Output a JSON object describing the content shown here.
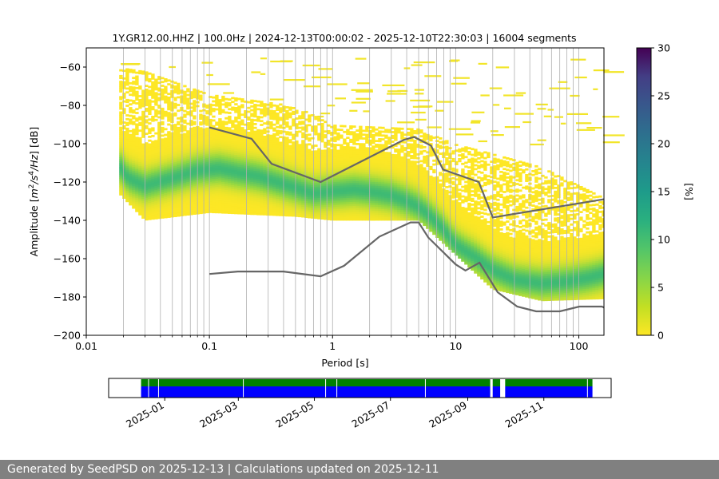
{
  "chart_data": [
    {
      "type": "heatmap",
      "title": "1Y.GR12.00.HHZ | 100.0Hz | 2024-12-13T00:00:02 - 2025-12-10T22:30:03 | 16004 segments",
      "xlabel": "Period [s]",
      "ylabel_parts": [
        "Amplitude [",
        "m",
        "2",
        "/s",
        "4",
        "/Hz",
        "] [dB]"
      ],
      "x_scale": "log",
      "xlim": [
        0.01,
        160
      ],
      "ylim": [
        -200,
        -50
      ],
      "x_ticks": [
        0.01,
        0.1,
        1,
        10,
        100
      ],
      "x_tick_labels": [
        "0.01",
        "0.1",
        "1",
        "10",
        "100"
      ],
      "y_ticks": [
        -200,
        -180,
        -160,
        -140,
        -120,
        -100,
        -80,
        -60
      ],
      "y_tick_labels": [
        "−200",
        "−180",
        "−160",
        "−140",
        "−120",
        "−100",
        "−80",
        "−60"
      ],
      "grid": "vertical minor lines on log period axis",
      "colorbar": {
        "label": "[%]",
        "range": [
          0,
          30
        ],
        "ticks": [
          0,
          5,
          10,
          15,
          20,
          25,
          30
        ],
        "tick_labels": [
          "0",
          "5",
          "10",
          "15",
          "20",
          "25",
          "30"
        ],
        "colormap": [
          "#fde725",
          "#90d743",
          "#35b779",
          "#21918c",
          "#31688e",
          "#443983",
          "#440154"
        ]
      },
      "noise_models": [
        {
          "name": "",
          "x": [
            0.1,
            0.22,
            0.32,
            0.8,
            3.8,
            4.6,
            6.3,
            7.9,
            15.4,
            20,
            160
          ],
          "y": [
            -91.5,
            -97.4,
            -110.5,
            -120,
            -98,
            -96.5,
            -101,
            -113.5,
            -120,
            -138.5,
            -129
          ]
        },
        {
          "name": "",
          "x": [
            0.1,
            0.17,
            0.4,
            0.8,
            1.24,
            2.4,
            4.3,
            5,
            6,
            10,
            12,
            15.6,
            21.9,
            31.6,
            45,
            70,
            101,
            154,
            160
          ],
          "y": [
            -168,
            -166.7,
            -166.7,
            -169.2,
            -163.7,
            -148.5,
            -141.1,
            -141.1,
            -149,
            -163,
            -166.2,
            -162.1,
            -177.5,
            -185,
            -187.5,
            -187.5,
            -185,
            -185,
            -185.5
          ]
        }
      ],
      "density": {
        "period_range_s": [
          0.0185,
          160
        ],
        "ridge_db": {
          "x": [
            0.0185,
            0.022,
            0.03,
            0.05,
            0.08,
            0.12,
            0.17,
            0.25,
            0.35,
            0.5,
            0.7,
            1,
            1.5,
            2,
            3,
            4,
            5,
            6,
            8,
            10,
            15,
            20,
            30,
            50,
            80,
            120,
            160
          ],
          "y": [
            -112,
            -118,
            -122,
            -118,
            -114,
            -113,
            -115,
            -117,
            -120,
            -123,
            -126,
            -125,
            -124,
            -125,
            -127,
            -130,
            -133,
            -137,
            -145,
            -153,
            -160,
            -166,
            -171,
            -173,
            -172,
            -170,
            -168
          ]
        },
        "outer_range_db": {
          "x": [
            0.0185,
            0.03,
            0.1,
            0.5,
            1,
            5,
            10,
            20,
            50,
            160
          ],
          "lower": [
            -126,
            -140,
            -136,
            -138,
            -140,
            -140,
            -158,
            -176,
            -182,
            -181
          ],
          "upper": [
            -60,
            -62,
            -74,
            -80,
            -90,
            -92,
            -100,
            -105,
            -112,
            -128
          ]
        },
        "scatter_above_db": [
          -55,
          -100
        ],
        "scatter_note_values": [
          -55,
          -60,
          -65,
          -70,
          -75,
          -80,
          -85,
          -90,
          -95,
          -100
        ]
      }
    },
    {
      "type": "timeline",
      "xlabel": "",
      "x_ticks": [
        "2025-01",
        "2025-03",
        "2025-05",
        "2025-07",
        "2025-09",
        "2025-11"
      ],
      "range": [
        "2024-11-17",
        "2025-12-25"
      ],
      "top_track_color": "#008000",
      "bottom_track_color": "#0000ff",
      "top_track_spans": [
        [
          "2024-12-13",
          "2025-09-19"
        ],
        [
          "2025-09-21",
          "2025-09-27"
        ],
        [
          "2025-10-01",
          "2025-12-10"
        ]
      ],
      "bottom_track_spans": [
        [
          "2024-12-13",
          "2025-09-19"
        ],
        [
          "2025-09-21",
          "2025-09-27"
        ],
        [
          "2025-10-01",
          "2025-12-10"
        ]
      ],
      "bottom_track_gaps": [
        "2024-12-19",
        "2024-12-27",
        "2025-03-05",
        "2025-05-10",
        "2025-05-19",
        "2025-07-29",
        "2025-12-06"
      ]
    }
  ],
  "footer": {
    "text": "Generated by SeedPSD on 2025-12-13 | Calculations updated on 2025-12-11"
  }
}
